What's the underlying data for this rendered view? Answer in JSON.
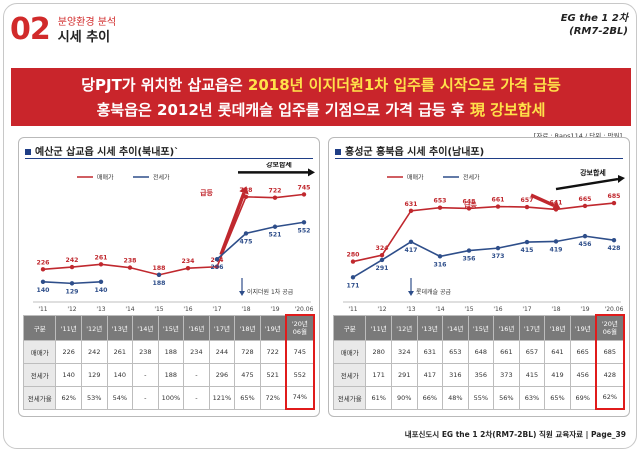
{
  "header": {
    "section_number": "02",
    "subtitle": "분양환경 분석",
    "title": "시세 추이",
    "project_line1": "EG the 1 2차",
    "project_line2": "(RM7-2BL)"
  },
  "banner": {
    "line1_a": "당PJT가 위치한 삽교읍은 ",
    "line1_b": "2018년 이지더원1차 입주를 시작으로 가격 급등",
    "line2_a": "홍북읍은 2012년 롯데캐슬 입주를 기점으로 가격 급등 후 ",
    "line2_b": "現",
    "line2_c": " 강보합세"
  },
  "source_note": "[자료 : Raps114 / 단위 : 만원]",
  "footer": "내포신도시 EG the 1 2차(RM7-2BL) 직원 교육자료 | Page_39",
  "colors": {
    "sale": "#c0282e",
    "jeonse": "#2e4e8a",
    "highlight": "#e01b1b"
  },
  "chart_data": [
    {
      "type": "line",
      "title": "예산군 삽교읍 시세 추이(북내포)`",
      "categories": [
        "'11",
        "'12",
        "'13",
        "'14",
        "'15",
        "'16",
        "'17",
        "'18",
        "'19",
        "'20.06"
      ],
      "series": [
        {
          "name": "매매가",
          "values": [
            226,
            242,
            261,
            238,
            188,
            234,
            244,
            728,
            722,
            745
          ]
        },
        {
          "name": "전세가",
          "values": [
            140,
            129,
            140,
            null,
            188,
            null,
            296,
            475,
            521,
            552
          ]
        }
      ],
      "annotations": {
        "surge": "급등",
        "steady": "강보합세",
        "event": "이지더원 1차 공급"
      },
      "legend": "top-left",
      "ylim": [
        0,
        900
      ],
      "table": {
        "header": [
          "구분",
          "'11년",
          "'12년",
          "'13년",
          "'14년",
          "'15년",
          "'16년",
          "'17년",
          "'18년",
          "'19년",
          "'20년 06월"
        ],
        "rows": [
          [
            "매매가",
            "226",
            "242",
            "261",
            "238",
            "188",
            "234",
            "244",
            "728",
            "722",
            "745"
          ],
          [
            "전세가",
            "140",
            "129",
            "140",
            "-",
            "188",
            "-",
            "296",
            "475",
            "521",
            "552"
          ],
          [
            "전세가율",
            "62%",
            "53%",
            "54%",
            "-",
            "100%",
            "-",
            "121%",
            "65%",
            "72%",
            "74%"
          ]
        ]
      }
    },
    {
      "type": "line",
      "title": "홍성군 홍북읍 시세 추이(남내포)",
      "categories": [
        "'11",
        "'12",
        "'13",
        "'14",
        "'15",
        "'16",
        "'17",
        "'18",
        "'19",
        "'20.06"
      ],
      "series": [
        {
          "name": "매매가",
          "values": [
            280,
            324,
            631,
            653,
            648,
            661,
            657,
            641,
            665,
            685
          ]
        },
        {
          "name": "전세가",
          "values": [
            171,
            291,
            417,
            316,
            356,
            373,
            415,
            419,
            456,
            428
          ]
        }
      ],
      "annotations": {
        "surge": "급등",
        "steady": "강보합세",
        "event": "롯데캐슬 공급"
      },
      "legend": "top-left",
      "ylim": [
        0,
        900
      ],
      "table": {
        "header": [
          "구분",
          "'11년",
          "'12년",
          "'13년",
          "'14년",
          "'15년",
          "'16년",
          "'17년",
          "'18년",
          "'19년",
          "'20년 06월"
        ],
        "rows": [
          [
            "매매가",
            "280",
            "324",
            "631",
            "653",
            "648",
            "661",
            "657",
            "641",
            "665",
            "685"
          ],
          [
            "전세가",
            "171",
            "291",
            "417",
            "316",
            "356",
            "373",
            "415",
            "419",
            "456",
            "428"
          ],
          [
            "전세가율",
            "61%",
            "90%",
            "66%",
            "48%",
            "55%",
            "56%",
            "63%",
            "65%",
            "69%",
            "62%"
          ]
        ]
      }
    }
  ]
}
